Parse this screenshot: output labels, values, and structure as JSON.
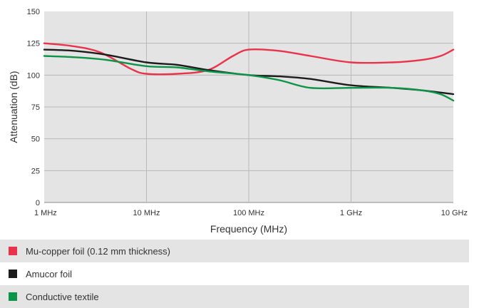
{
  "chart_data": {
    "type": "line",
    "title": "",
    "xlabel": "Frequency (MHz)",
    "ylabel": "Attenuation (dB)",
    "x_scale": "log",
    "xlim": [
      1,
      10000
    ],
    "ylim": [
      0,
      150
    ],
    "x_ticks": [
      {
        "value": 1,
        "label": "1 MHz"
      },
      {
        "value": 10,
        "label": "10 MHz"
      },
      {
        "value": 100,
        "label": "100 MHz"
      },
      {
        "value": 1000,
        "label": "1 GHz"
      },
      {
        "value": 10000,
        "label": "10 GHz"
      }
    ],
    "y_ticks": [
      0,
      25,
      50,
      75,
      100,
      125,
      150
    ],
    "grid": true,
    "legend_position": "bottom",
    "series": [
      {
        "name": "Mu-copper foil (0.12 mm thickness)",
        "color": "#e8334a",
        "x": [
          1,
          1.8,
          3.5,
          7,
          10,
          20,
          40,
          70,
          100,
          200,
          400,
          1000,
          2500,
          5000,
          7500,
          10000
        ],
        "y": [
          125,
          123,
          118,
          105,
          101,
          101,
          104,
          115,
          120,
          119,
          115,
          110,
          110,
          112,
          115,
          120
        ]
      },
      {
        "name": "Amucor foil",
        "color": "#1c1c1c",
        "x": [
          1,
          2,
          4,
          10,
          20,
          40,
          100,
          200,
          400,
          1000,
          2500,
          5000,
          10000
        ],
        "y": [
          120,
          119,
          116,
          110,
          108,
          104,
          100,
          99,
          97,
          92,
          90,
          88,
          85
        ]
      },
      {
        "name": "Conductive textile",
        "color": "#0c9447",
        "x": [
          1,
          2,
          4,
          10,
          20,
          40,
          100,
          200,
          400,
          1000,
          2500,
          5000,
          7500,
          10000
        ],
        "y": [
          115,
          114,
          112,
          107,
          106,
          103,
          100,
          96,
          90,
          90,
          90,
          88,
          85,
          80
        ]
      }
    ]
  }
}
